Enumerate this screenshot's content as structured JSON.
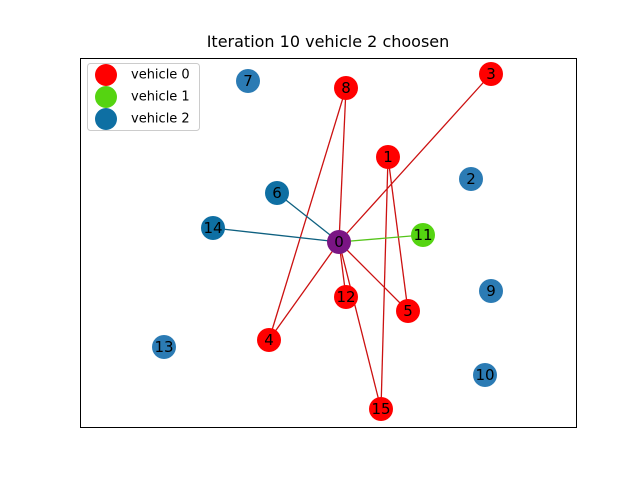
{
  "title": "Iteration 10 vehicle 2 choosen",
  "colors": {
    "vehicle0": "#ff0000",
    "vehicle1": "#55d411",
    "vehicle2": "#0e6fa3",
    "unassigned": "#2b7bb4",
    "depot": "#7a1584",
    "edge_vehicle0": "#cc1111",
    "edge_vehicle1": "#55c41a",
    "edge_vehicle2": "#0e6080"
  },
  "legend": [
    {
      "label": "vehicle 0",
      "color_key": "vehicle0"
    },
    {
      "label": "vehicle 1",
      "color_key": "vehicle1"
    },
    {
      "label": "vehicle 2",
      "color_key": "vehicle2"
    }
  ],
  "nodes": [
    {
      "id": "0",
      "group": "depot"
    },
    {
      "id": "1",
      "group": "vehicle0"
    },
    {
      "id": "2",
      "group": "unassigned"
    },
    {
      "id": "3",
      "group": "vehicle0"
    },
    {
      "id": "4",
      "group": "vehicle0"
    },
    {
      "id": "5",
      "group": "vehicle0"
    },
    {
      "id": "6",
      "group": "vehicle2"
    },
    {
      "id": "7",
      "group": "unassigned"
    },
    {
      "id": "8",
      "group": "vehicle0"
    },
    {
      "id": "9",
      "group": "unassigned"
    },
    {
      "id": "10",
      "group": "unassigned"
    },
    {
      "id": "11",
      "group": "vehicle1"
    },
    {
      "id": "12",
      "group": "vehicle0"
    },
    {
      "id": "13",
      "group": "unassigned"
    },
    {
      "id": "14",
      "group": "vehicle2"
    },
    {
      "id": "15",
      "group": "vehicle0"
    }
  ],
  "edges": [
    {
      "from": "0",
      "to": "3",
      "vehicle": "vehicle0"
    },
    {
      "from": "0",
      "to": "8",
      "vehicle": "vehicle0"
    },
    {
      "from": "8",
      "to": "4",
      "vehicle": "vehicle0"
    },
    {
      "from": "4",
      "to": "0",
      "vehicle": "vehicle0"
    },
    {
      "from": "0",
      "to": "5",
      "vehicle": "vehicle0"
    },
    {
      "from": "5",
      "to": "1",
      "vehicle": "vehicle0"
    },
    {
      "from": "1",
      "to": "15",
      "vehicle": "vehicle0"
    },
    {
      "from": "15",
      "to": "0",
      "vehicle": "vehicle0"
    },
    {
      "from": "0",
      "to": "12",
      "vehicle": "vehicle0"
    },
    {
      "from": "0",
      "to": "11",
      "vehicle": "vehicle1"
    },
    {
      "from": "0",
      "to": "6",
      "vehicle": "vehicle2"
    },
    {
      "from": "0",
      "to": "14",
      "vehicle": "vehicle2"
    }
  ]
}
